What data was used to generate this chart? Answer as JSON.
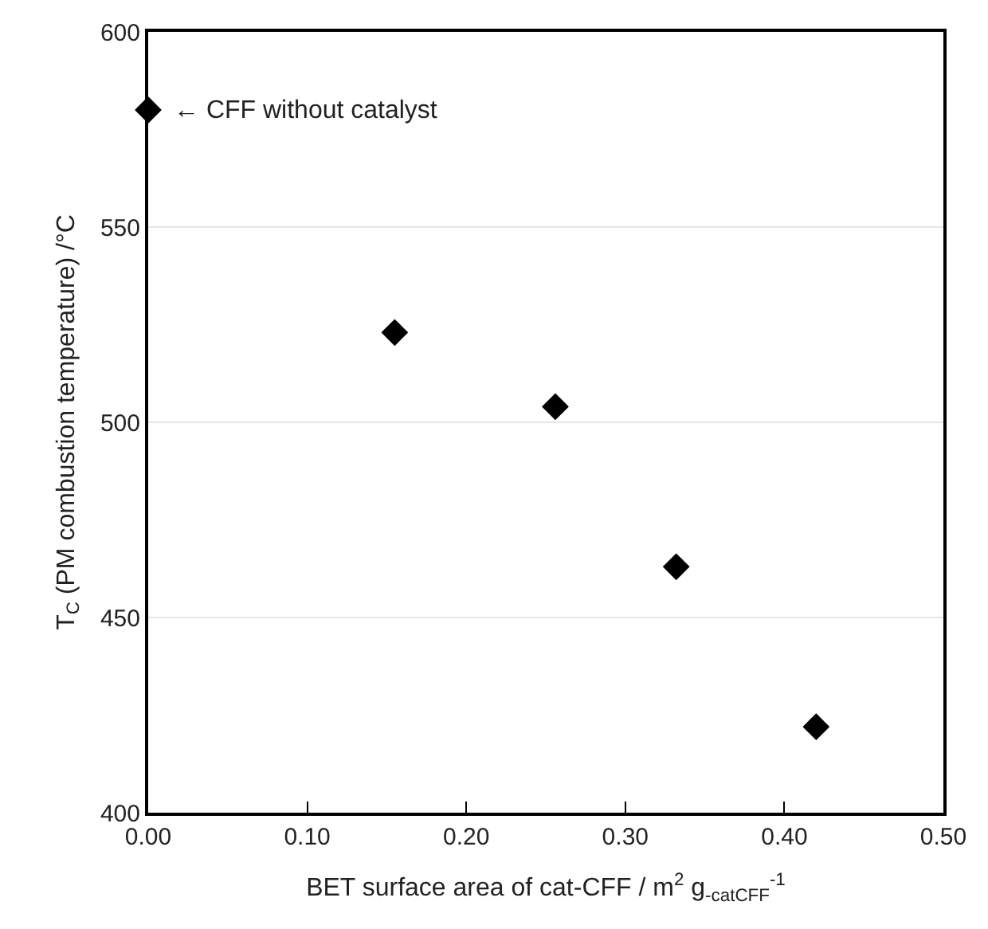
{
  "chart_data": {
    "type": "scatter",
    "xlabel": "BET surface area of cat-CFF / m$^{2}$ g$_{-catCFF}$$^{-1}$",
    "ylabel": "T$_{C}$ (PM combustion temperature) /°C",
    "x": [
      0.0,
      0.155,
      0.256,
      0.332,
      0.42
    ],
    "series": [
      {
        "color": "#000000",
        "values": [
          580,
          523,
          504,
          463,
          422
        ]
      }
    ],
    "marker": "diamond",
    "xlim": [
      0,
      0.5
    ],
    "xticks": [
      {
        "value": 0,
        "label": "0.00"
      },
      {
        "value": 0.1,
        "label": "0.10"
      },
      {
        "value": 0.2,
        "label": "0.20"
      },
      {
        "value": 0.3,
        "label": "0.30"
      },
      {
        "value": 0.4,
        "label": "0.40"
      },
      {
        "value": 0.5,
        "label": "0.50"
      }
    ],
    "ylim": [
      400,
      600
    ],
    "yticks": [
      400,
      450,
      500,
      550,
      600
    ],
    "grid": "y",
    "annotations": [
      {
        "text": "← CFF without catalyst",
        "x": 0.0,
        "y": 580
      }
    ]
  }
}
